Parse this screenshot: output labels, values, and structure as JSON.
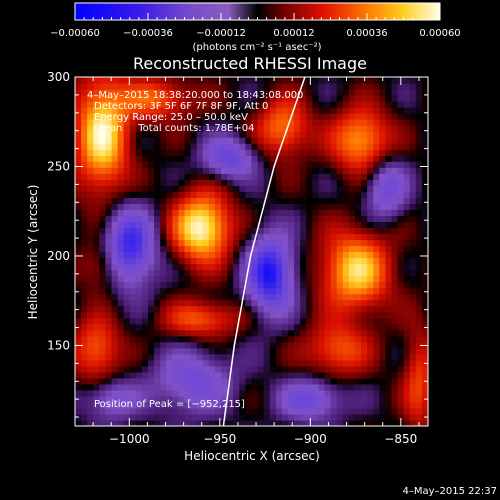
{
  "chart_data": {
    "type": "heatmap",
    "title": "Reconstructed RHESSI Image",
    "xlabel": "Heliocentric X (arcsec)",
    "ylabel": "Heliocentric Y (arcsec)",
    "xlim": [
      -1030,
      -835
    ],
    "ylim": [
      105,
      300
    ],
    "x_ticks": [
      -1000,
      -950,
      -900,
      -850
    ],
    "y_ticks": [
      150,
      200,
      250,
      300
    ],
    "x_tick_labels": [
      "−1000",
      "−950",
      "−900",
      "−850"
    ],
    "y_tick_labels": [
      "150",
      "200",
      "250",
      "300"
    ],
    "colorbar": {
      "range": [
        -0.0006,
        0.0006
      ],
      "tick_values": [
        -0.0006,
        -0.00036,
        -0.00012,
        0.00012,
        0.00036,
        0.0006
      ],
      "tick_labels": [
        "−0.00060",
        "−0.00036",
        "−0.00012",
        "0.00012",
        "0.00036",
        "0.00060"
      ],
      "units_label": "(photons cm⁻² s⁻¹ asec⁻²)"
    },
    "annotations": {
      "time_range": "4–May–2015 18:38:20.000 to 18:43:08.000",
      "detectors": "Detectors: 3F 5F 6F 7F 8F 9F, Att 0",
      "energy_range": "Energy Range: 25.0 – 50.0 keV",
      "counts": "Clean     Total counts: 1.78E+04",
      "peak": "Position of Peak = [−952,215]"
    },
    "sources": [
      {
        "x": -960,
        "y": 216,
        "amplitude": 0.0006,
        "sx": 11,
        "sy": 13
      },
      {
        "x": -1015,
        "y": 268,
        "amplitude": 0.00055,
        "sx": 10,
        "sy": 22
      },
      {
        "x": -875,
        "y": 192,
        "amplitude": 0.0005,
        "sx": 13,
        "sy": 15
      },
      {
        "x": -872,
        "y": 265,
        "amplitude": 0.00042,
        "sx": 11,
        "sy": 12
      },
      {
        "x": -915,
        "y": 272,
        "amplitude": 0.00035,
        "sx": 10,
        "sy": 11
      },
      {
        "x": -985,
        "y": 288,
        "amplitude": 0.0003,
        "sx": 14,
        "sy": 8
      },
      {
        "x": -960,
        "y": 165,
        "amplitude": 0.0003,
        "sx": 14,
        "sy": 7
      },
      {
        "x": -885,
        "y": 148,
        "amplitude": 0.0003,
        "sx": 12,
        "sy": 10
      },
      {
        "x": -1018,
        "y": 148,
        "amplitude": 0.00032,
        "sx": 9,
        "sy": 12
      },
      {
        "x": -1015,
        "y": 195,
        "amplitude": 0.0002,
        "sx": 8,
        "sy": 10
      },
      {
        "x": -840,
        "y": 130,
        "amplitude": 0.00025,
        "sx": 6,
        "sy": 20
      },
      {
        "x": -1000,
        "y": 205,
        "amplitude": -0.0005,
        "sx": 10,
        "sy": 15
      },
      {
        "x": -922,
        "y": 190,
        "amplitude": -0.00055,
        "sx": 9,
        "sy": 15
      },
      {
        "x": -945,
        "y": 255,
        "amplitude": -0.00035,
        "sx": 10,
        "sy": 8
      },
      {
        "x": -965,
        "y": 130,
        "amplitude": -0.0003,
        "sx": 15,
        "sy": 12
      },
      {
        "x": -900,
        "y": 120,
        "amplitude": -0.00032,
        "sx": 12,
        "sy": 8
      },
      {
        "x": -858,
        "y": 238,
        "amplitude": -0.0003,
        "sx": 8,
        "sy": 12
      },
      {
        "x": -1010,
        "y": 120,
        "amplitude": -0.00025,
        "sx": 10,
        "sy": 8
      }
    ],
    "limb_curve": [
      [
        -948,
        105
      ],
      [
        -942,
        150
      ],
      [
        -933,
        200
      ],
      [
        -920,
        250
      ],
      [
        -903,
        300
      ]
    ]
  },
  "footer": {
    "timestamp": "4–May–2015 22:37"
  }
}
